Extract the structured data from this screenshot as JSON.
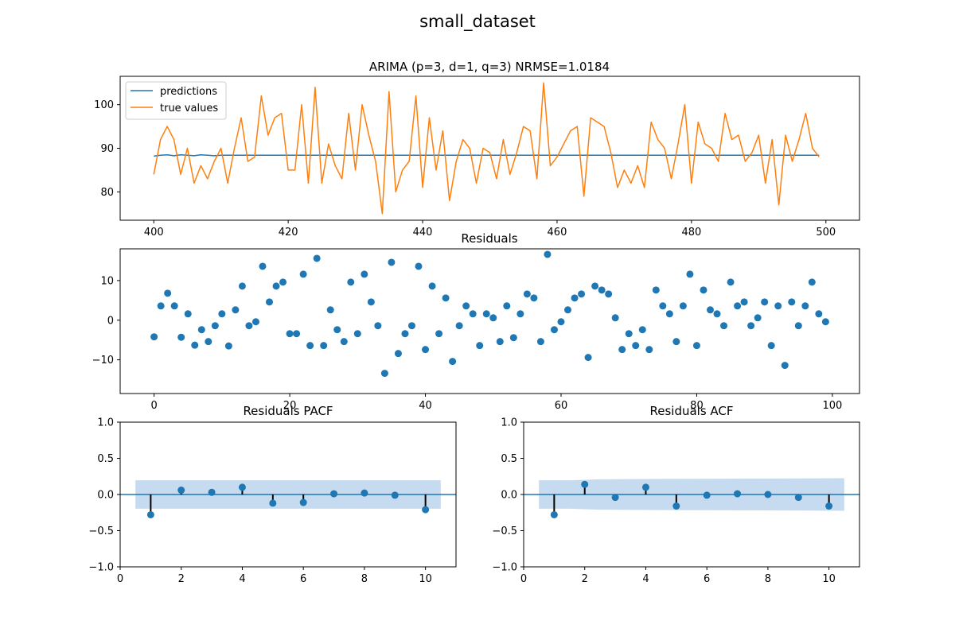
{
  "figure": {
    "suptitle": "small_dataset"
  },
  "chart_data": [
    {
      "id": "predictions",
      "type": "line",
      "title": "ARIMA (p=3, d=1, q=3) NRMSE=1.0184",
      "xlabel": "",
      "ylabel": "",
      "xlim": [
        395,
        505
      ],
      "ylim": [
        73.5,
        106.5
      ],
      "xticks": [
        400,
        420,
        440,
        460,
        480,
        500
      ],
      "yticks": [
        80,
        90,
        100
      ],
      "legend": "top-left",
      "x": [
        400,
        401,
        402,
        403,
        404,
        405,
        406,
        407,
        408,
        409,
        410,
        411,
        412,
        413,
        414,
        415,
        416,
        417,
        418,
        419,
        420,
        421,
        422,
        423,
        424,
        425,
        426,
        427,
        428,
        429,
        430,
        431,
        432,
        433,
        434,
        435,
        436,
        437,
        438,
        439,
        440,
        441,
        442,
        443,
        444,
        445,
        446,
        447,
        448,
        449,
        450,
        451,
        452,
        453,
        454,
        455,
        456,
        457,
        458,
        459,
        460,
        461,
        462,
        463,
        464,
        465,
        466,
        467,
        468,
        469,
        470,
        471,
        472,
        473,
        474,
        475,
        476,
        477,
        478,
        479,
        480,
        481,
        482,
        483,
        484,
        485,
        486,
        487,
        488,
        489,
        490,
        491,
        492,
        493,
        494,
        495,
        496,
        497,
        498,
        499
      ],
      "series": [
        {
          "name": "predictions",
          "color": "#1f77b4",
          "values": [
            88.2,
            88.4,
            88.5,
            88.3,
            88.5,
            88.4,
            88.3,
            88.5,
            88.4,
            88.3,
            88.4,
            88.4,
            88.4,
            88.4,
            88.4,
            88.4,
            88.4,
            88.4,
            88.4,
            88.4,
            88.4,
            88.4,
            88.4,
            88.4,
            88.4,
            88.4,
            88.4,
            88.4,
            88.4,
            88.4,
            88.4,
            88.4,
            88.4,
            88.4,
            88.4,
            88.4,
            88.4,
            88.4,
            88.4,
            88.4,
            88.4,
            88.4,
            88.4,
            88.4,
            88.4,
            88.4,
            88.4,
            88.4,
            88.4,
            88.4,
            88.4,
            88.4,
            88.4,
            88.4,
            88.4,
            88.4,
            88.4,
            88.4,
            88.4,
            88.4,
            88.4,
            88.4,
            88.4,
            88.4,
            88.4,
            88.4,
            88.4,
            88.4,
            88.4,
            88.4,
            88.4,
            88.4,
            88.4,
            88.4,
            88.4,
            88.4,
            88.4,
            88.4,
            88.4,
            88.4,
            88.4,
            88.4,
            88.4,
            88.4,
            88.4,
            88.4,
            88.4,
            88.4,
            88.4,
            88.4,
            88.4,
            88.4,
            88.4,
            88.4,
            88.4,
            88.4,
            88.4,
            88.4,
            88.4,
            88.4
          ]
        },
        {
          "name": "true values",
          "color": "#ff7f0e",
          "values": [
            84,
            92,
            95,
            92,
            84,
            90,
            82,
            86,
            83,
            87,
            90,
            82,
            90,
            97,
            87,
            88,
            102,
            93,
            97,
            98,
            85,
            85,
            100,
            82,
            104,
            82,
            91,
            86,
            83,
            98,
            85,
            100,
            93,
            87,
            75,
            103,
            80,
            85,
            87,
            102,
            81,
            97,
            85,
            94,
            78,
            87,
            92,
            90,
            82,
            90,
            89,
            83,
            92,
            84,
            89,
            95,
            94,
            83,
            105,
            86,
            88,
            91,
            94,
            95,
            79,
            97,
            96,
            95,
            89,
            81,
            85,
            82,
            86,
            81,
            96,
            92,
            90,
            83,
            91,
            100,
            82,
            96,
            91,
            90,
            87,
            98,
            92,
            93,
            87,
            89,
            93,
            82,
            92,
            77,
            93,
            87,
            92,
            98,
            90,
            88
          ]
        }
      ]
    },
    {
      "id": "residuals",
      "type": "scatter",
      "title": "Residuals",
      "xlabel": "",
      "ylabel": "",
      "xlim": [
        -5,
        104
      ],
      "ylim": [
        -18.5,
        18
      ],
      "xticks": [
        0,
        20,
        40,
        60,
        80,
        100
      ],
      "yticks": [
        -10,
        0,
        10
      ],
      "color": "#1f77b4",
      "x": [
        0,
        1,
        2,
        3,
        4,
        5,
        6,
        7,
        8,
        9,
        10,
        11,
        12,
        13,
        14,
        15,
        16,
        17,
        18,
        19,
        20,
        21,
        22,
        23,
        24,
        25,
        26,
        27,
        28,
        29,
        30,
        31,
        32,
        33,
        34,
        35,
        36,
        37,
        38,
        39,
        40,
        41,
        42,
        43,
        44,
        45,
        46,
        47,
        48,
        49,
        50,
        51,
        52,
        53,
        54,
        55,
        56,
        57,
        58,
        59,
        60,
        61,
        62,
        63,
        64,
        65,
        66,
        67,
        68,
        69,
        70,
        71,
        72,
        73,
        74,
        75,
        76,
        77,
        78,
        79,
        80,
        81,
        82,
        83,
        84,
        85,
        86,
        87,
        88,
        89,
        90,
        91,
        92,
        93,
        94,
        95,
        96,
        97,
        98,
        99
      ],
      "y": [
        -4.2,
        3.6,
        6.8,
        3.6,
        -4.3,
        1.6,
        -6.3,
        -2.4,
        -5.4,
        -1.4,
        1.6,
        -6.5,
        2.6,
        8.6,
        -1.4,
        -0.4,
        13.6,
        4.6,
        8.6,
        9.6,
        -3.4,
        -3.4,
        11.6,
        -6.4,
        15.6,
        -6.4,
        2.6,
        -2.4,
        -5.4,
        9.6,
        -3.4,
        11.6,
        4.6,
        -1.4,
        -13.4,
        14.6,
        -8.4,
        -3.4,
        -1.4,
        13.6,
        -7.4,
        8.6,
        -3.4,
        5.6,
        -10.4,
        -1.4,
        3.6,
        1.6,
        -6.4,
        1.6,
        0.6,
        -5.4,
        3.6,
        -4.4,
        1.6,
        6.6,
        5.6,
        -5.4,
        16.6,
        -2.4,
        -0.4,
        2.6,
        5.6,
        6.6,
        -9.4,
        8.6,
        7.6,
        6.6,
        0.6,
        -7.4,
        -3.4,
        -6.4,
        -2.4,
        -7.4,
        7.6,
        3.6,
        1.6,
        -5.4,
        3.6,
        11.6,
        -6.4,
        7.6,
        2.6,
        1.6,
        -1.4,
        9.6,
        3.6,
        4.6,
        -1.4,
        0.6,
        4.6,
        -6.4,
        3.6,
        -11.4,
        4.6,
        -1.4,
        3.6,
        9.6,
        1.6,
        -0.4
      ]
    },
    {
      "id": "pacf",
      "type": "stem",
      "title": "Residuals PACF",
      "xlabel": "",
      "ylabel": "",
      "xlim": [
        0,
        11
      ],
      "ylim": [
        -1.0,
        1.0
      ],
      "xticks": [
        0,
        2,
        4,
        6,
        8,
        10
      ],
      "yticks": [
        -1.0,
        -0.5,
        0.0,
        0.5,
        1.0
      ],
      "lags": [
        1,
        2,
        3,
        4,
        5,
        6,
        7,
        8,
        9,
        10
      ],
      "values": [
        -0.28,
        0.06,
        0.03,
        0.1,
        -0.12,
        -0.11,
        0.01,
        0.02,
        -0.01,
        -0.21
      ],
      "confidence_band": {
        "x": [
          0.5,
          10.5
        ],
        "upper": [
          0.196,
          0.196
        ],
        "lower": [
          -0.196,
          -0.196
        ]
      }
    },
    {
      "id": "acf",
      "type": "stem",
      "title": "Residuals ACF",
      "xlabel": "",
      "ylabel": "",
      "xlim": [
        0,
        11
      ],
      "ylim": [
        -1.0,
        1.0
      ],
      "xticks": [
        0,
        2,
        4,
        6,
        8,
        10
      ],
      "yticks": [
        -1.0,
        -0.5,
        0.0,
        0.5,
        1.0
      ],
      "lags": [
        1,
        2,
        3,
        4,
        5,
        6,
        7,
        8,
        9,
        10
      ],
      "values": [
        -0.28,
        0.14,
        -0.04,
        0.1,
        -0.16,
        -0.01,
        0.01,
        0.0,
        -0.04,
        -0.16
      ],
      "confidence_band": {
        "x": [
          0.5,
          1.5,
          2.5,
          4.5,
          10.5
        ],
        "upper": [
          0.196,
          0.196,
          0.21,
          0.215,
          0.225
        ],
        "lower": [
          -0.196,
          -0.196,
          -0.21,
          -0.215,
          -0.225
        ]
      }
    }
  ]
}
